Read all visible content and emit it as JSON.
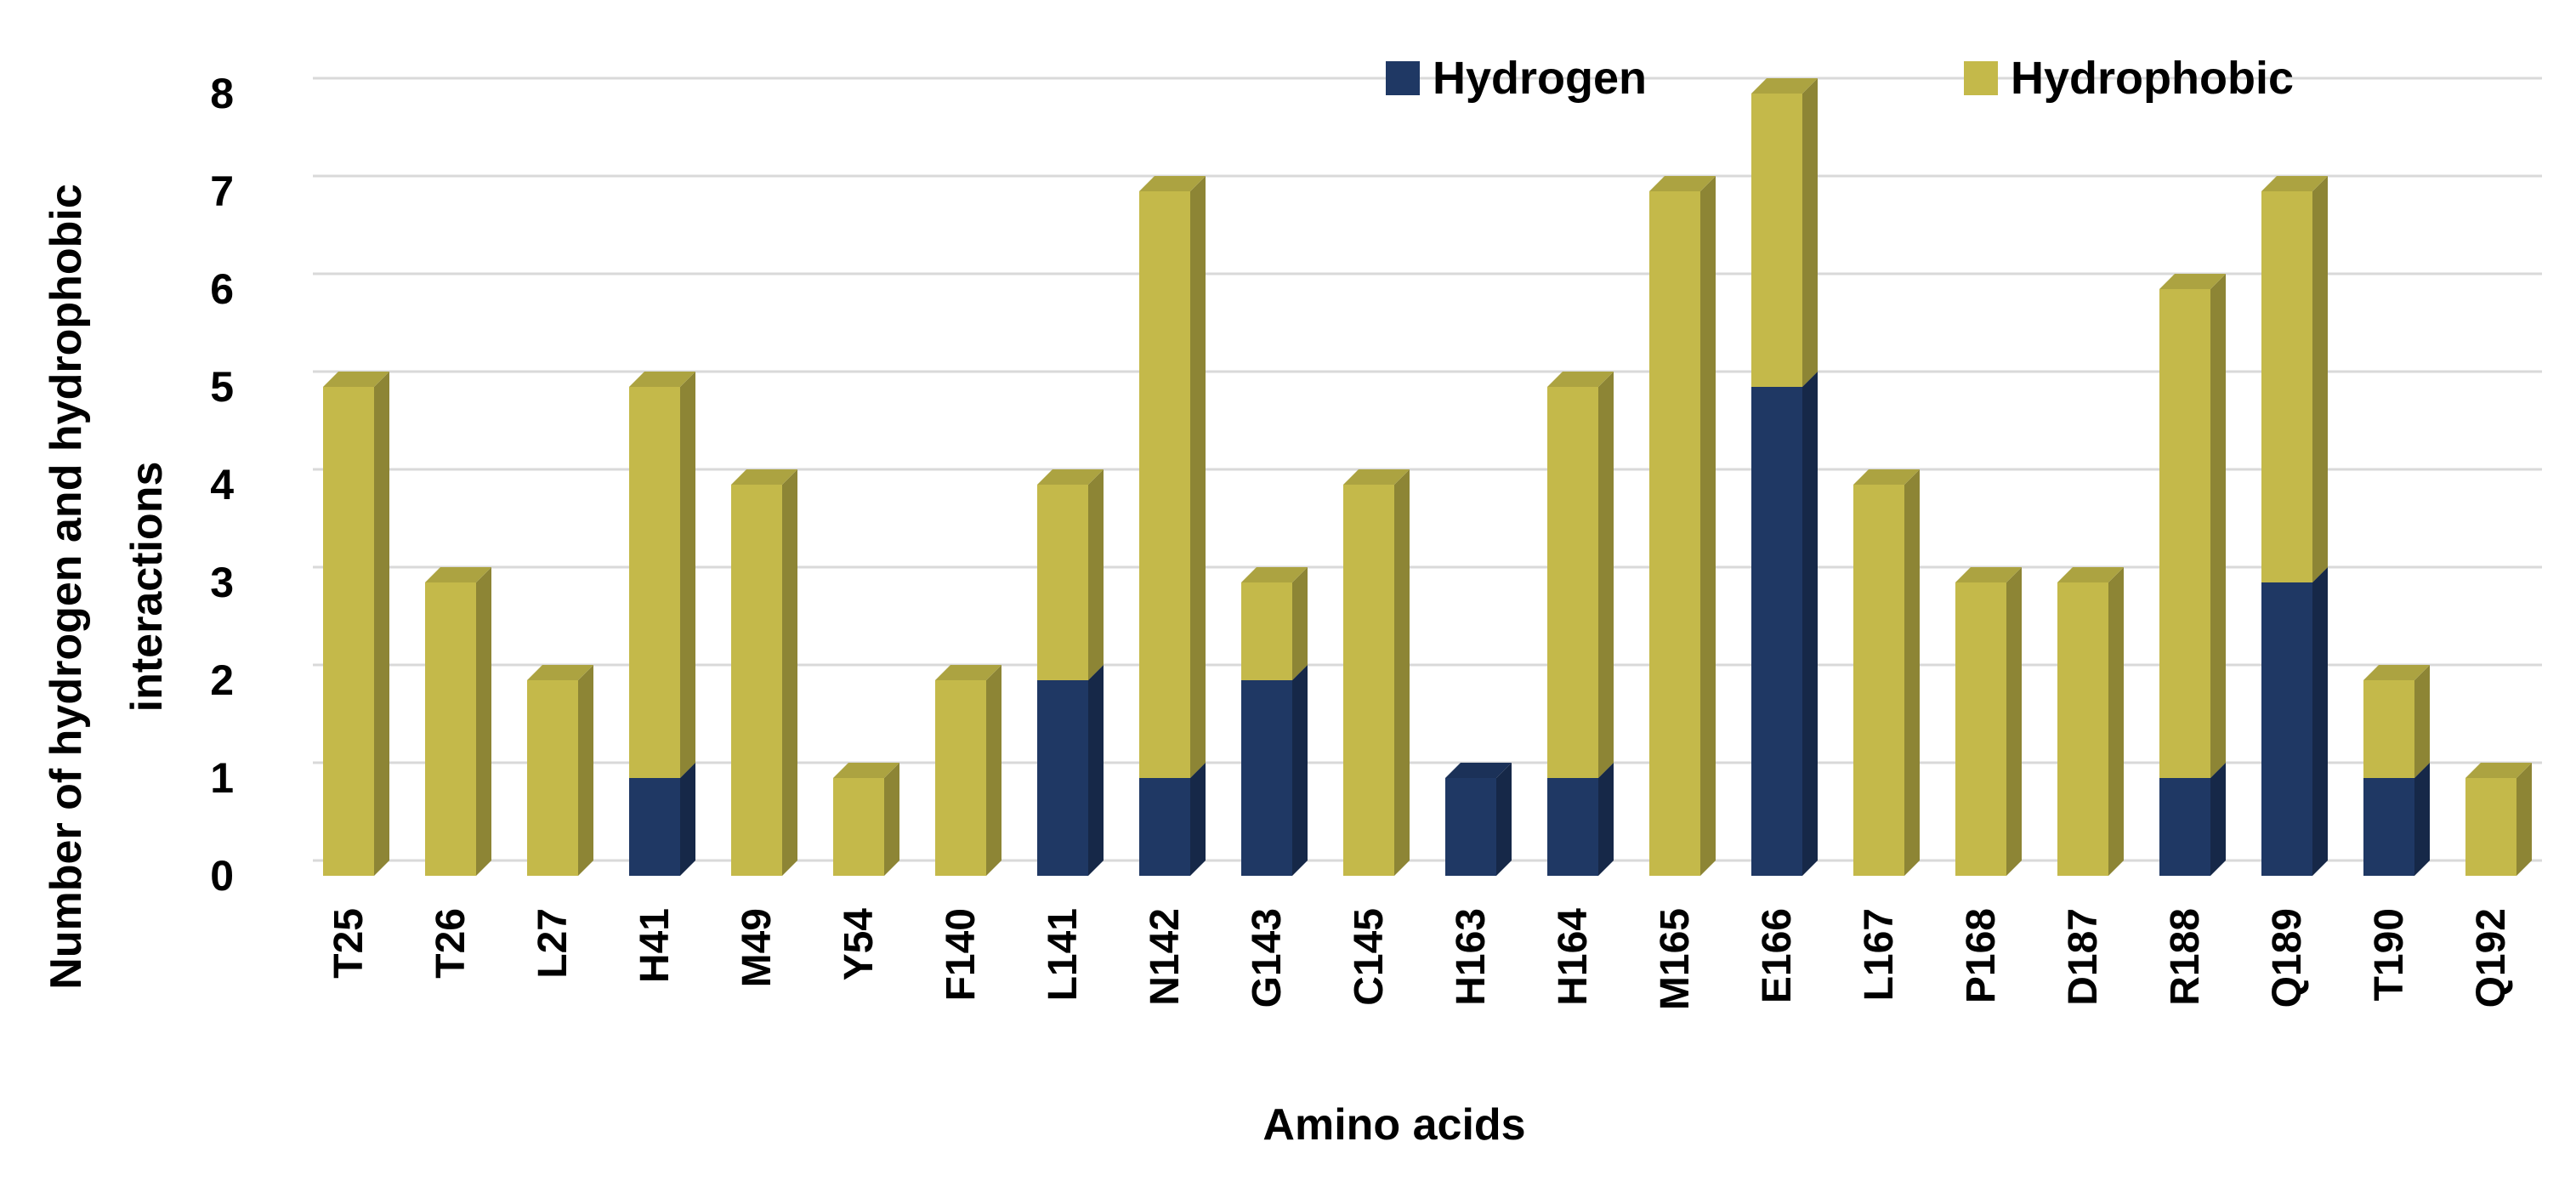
{
  "chart_data": {
    "type": "bar",
    "stacked": true,
    "three_d": true,
    "title": "",
    "xlabel": "Amino acids",
    "ylabel_lines": [
      "Number of hydrogen  and hydrophobic",
      "interactions"
    ],
    "ylim": [
      0,
      8
    ],
    "yticks": [
      "0",
      "1",
      "2",
      "3",
      "4",
      "5",
      "6",
      "7",
      "8"
    ],
    "grid": true,
    "legend_position": "top-right",
    "categories": [
      "T25",
      "T26",
      "L27",
      "H41",
      "M49",
      "Y54",
      "F140",
      "L141",
      "N142",
      "G143",
      "C145",
      "H163",
      "H164",
      "M165",
      "E166",
      "L167",
      "P168",
      "D187",
      "R188",
      "Q189",
      "T190",
      "Q192"
    ],
    "series": [
      {
        "name": "Hydrogen",
        "color": "#1f3864",
        "values": [
          0,
          0,
          0,
          1,
          0,
          0,
          0,
          2,
          1,
          2,
          0,
          1,
          1,
          0,
          5,
          0,
          0,
          0,
          1,
          3,
          1,
          0
        ]
      },
      {
        "name": "Hydrophobic",
        "color": "#c4b94a",
        "values": [
          5,
          3,
          2,
          4,
          4,
          1,
          2,
          2,
          6,
          1,
          4,
          0,
          4,
          7,
          3,
          4,
          3,
          3,
          5,
          4,
          1,
          1
        ]
      }
    ]
  }
}
